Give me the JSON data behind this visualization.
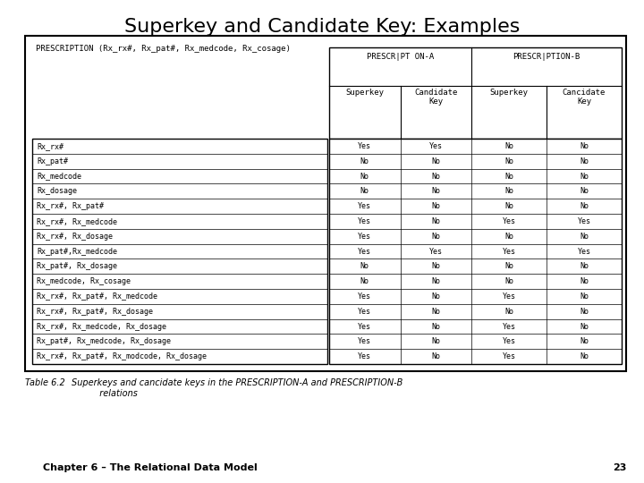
{
  "title": "Superkey and Candidate Key: Examples",
  "title_fontsize": 16,
  "prescription_label": "PRESCRIPTION (Rx_rx#, Rx_pat#, Rx_medcode, Rx_cosage)",
  "header_top_a": "PRESCR|PT ON-A",
  "header_top_b": "PRESCR|PTION-B",
  "header_sub_a1": "Superkey",
  "header_sub_a2": "Candidate\nKey",
  "header_sub_b1": "Superkey",
  "header_sub_b2": "Cancidate\nKey",
  "table_caption_bold": "Table 6.2",
  "table_caption_normal": "  Superkeys and cancidate keys in the PRESCRIPTION-A and PRESCRIPTION-B\n          relations",
  "chapter_label": "Chapter 6 – The Relational Data Model",
  "page_number": "23",
  "rows": [
    [
      "Rx_rx#",
      "Yes",
      "Yes",
      "No",
      "No"
    ],
    [
      "Rx_pat#",
      "No",
      "No",
      "No",
      "No"
    ],
    [
      "Rx_medcode",
      "No",
      "No",
      "No",
      "No"
    ],
    [
      "Rx_dosage",
      "No",
      "No",
      "No",
      "No"
    ],
    [
      "Rx_rx#, Rx_pat#",
      "Yes",
      "No",
      "No",
      "No"
    ],
    [
      "Rx_rx#, Rx_medcode",
      "Yes",
      "No",
      "Yes",
      "Yes"
    ],
    [
      "Rx_rx#, Rx_dosage",
      "Yes",
      "No",
      "No",
      "No"
    ],
    [
      "Rx_pat#,Rx_medcode",
      "Yes",
      "Yes",
      "Yes",
      "Yes"
    ],
    [
      "Rx_pat#, Rx_dosage",
      "No",
      "No",
      "No",
      "No"
    ],
    [
      "Rx_medcode, Rx_cosage",
      "No",
      "No",
      "No",
      "No"
    ],
    [
      "Rx_rx#, Rx_pat#, Rx_medcode",
      "Yes",
      "No",
      "Yes",
      "No"
    ],
    [
      "Rx_rx#, Rx_pat#, Rx_dosage",
      "Yes",
      "No",
      "No",
      "No"
    ],
    [
      "Rx_rx#, Rx_medcode, Rx_dosage",
      "Yes",
      "No",
      "Yes",
      "No"
    ],
    [
      "Rx_pat#, Rx_medcode, Rx_dosage",
      "Yes",
      "No",
      "Yes",
      "No"
    ],
    [
      "Rx_rx#, Rx_pat#, Rx_modcode, Rx_dosage",
      "Yes",
      "No",
      "Yes",
      "No"
    ]
  ],
  "bg_color": "#ffffff",
  "line_color": "#000000",
  "text_color": "#000000"
}
